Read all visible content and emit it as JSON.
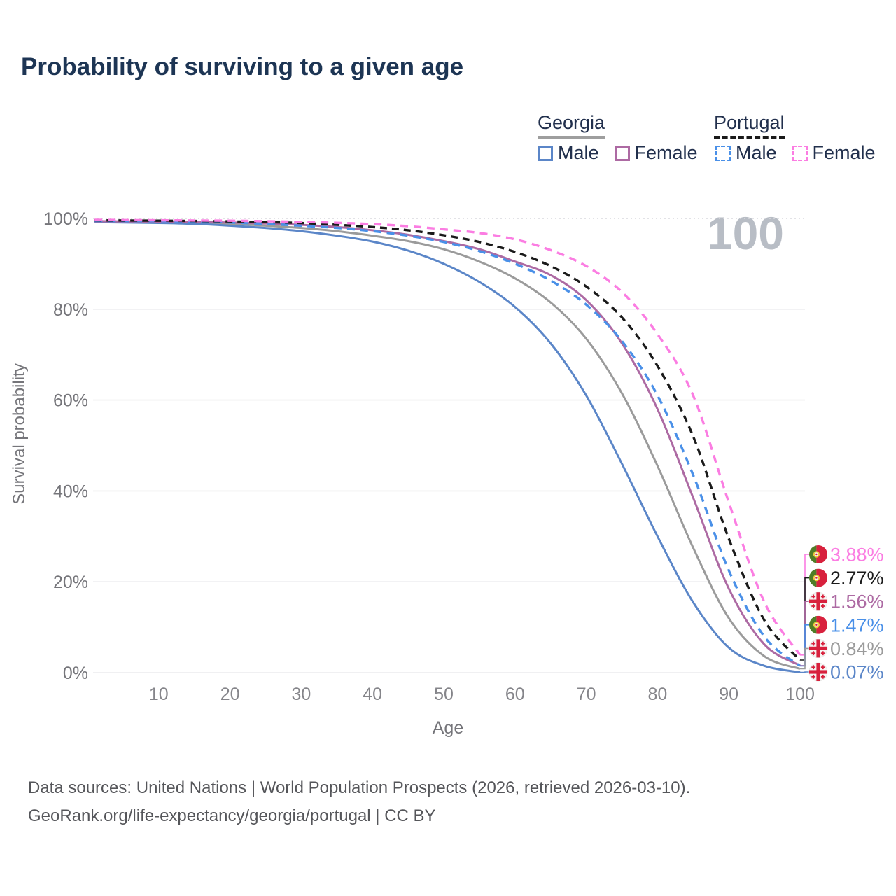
{
  "title": "Probability of surviving to a given age",
  "watermark_age": "100",
  "legend": {
    "groups": [
      {
        "name": "Georgia",
        "line_style": "solid",
        "items": [
          {
            "label": "Male",
            "color": "#5b86c8",
            "dashed": false
          },
          {
            "label": "Female",
            "color": "#ad6aa3",
            "dashed": false
          }
        ]
      },
      {
        "name": "Portugal",
        "line_style": "dashed",
        "items": [
          {
            "label": "Male",
            "color": "#4a90e8",
            "dashed": true
          },
          {
            "label": "Female",
            "color": "#fb7de2",
            "dashed": true
          }
        ]
      }
    ]
  },
  "chart_data": {
    "type": "line",
    "title": "Probability of surviving to a given age",
    "xlabel": "Age",
    "ylabel": "Survival probability",
    "xlim": [
      0,
      100
    ],
    "ylim": [
      0,
      100
    ],
    "grid": true,
    "legend_position": "top-right",
    "xticks": [
      10,
      20,
      30,
      40,
      50,
      60,
      70,
      80,
      90,
      100
    ],
    "yticks": [
      0,
      20,
      40,
      60,
      80,
      100
    ],
    "ytick_suffix": "%",
    "x": [
      1,
      5,
      10,
      15,
      20,
      25,
      30,
      35,
      40,
      45,
      50,
      55,
      60,
      65,
      70,
      75,
      80,
      85,
      90,
      95,
      100
    ],
    "series": [
      {
        "name": "Georgia",
        "sex": "Both",
        "color": "#9b9b9b",
        "dashed": false,
        "values": [
          99.3,
          99.25,
          99.2,
          99.0,
          98.8,
          98.4,
          97.9,
          97.2,
          96.2,
          95.0,
          93.2,
          90.5,
          86.8,
          81.5,
          73.5,
          61.5,
          45.5,
          27.5,
          12.0,
          3.6,
          0.84
        ]
      },
      {
        "name": "Georgia Male",
        "sex": "Male",
        "color": "#5b86c8",
        "dashed": false,
        "values": [
          99.2,
          99.1,
          99.0,
          98.8,
          98.4,
          97.9,
          97.2,
          96.2,
          94.9,
          92.9,
          90.0,
          86.0,
          80.5,
          72.5,
          61.0,
          46.0,
          30.0,
          15.5,
          5.5,
          1.5,
          0.07
        ]
      },
      {
        "name": "Georgia Female",
        "sex": "Female",
        "color": "#ad6aa3",
        "dashed": false,
        "values": [
          99.4,
          99.35,
          99.3,
          99.2,
          99.1,
          98.9,
          98.6,
          98.1,
          97.4,
          96.4,
          95.0,
          93.2,
          90.5,
          87.5,
          82.0,
          72.5,
          58.0,
          38.5,
          18.5,
          6.2,
          1.56
        ]
      },
      {
        "name": "Portugal Male",
        "sex": "Male",
        "color": "#4a90e8",
        "dashed": true,
        "values": [
          99.5,
          99.45,
          99.4,
          99.3,
          99.1,
          98.8,
          98.4,
          97.9,
          97.2,
          96.2,
          94.8,
          92.8,
          90.0,
          86.3,
          81.0,
          73.0,
          61.0,
          43.5,
          22.5,
          7.9,
          1.47
        ]
      },
      {
        "name": "Portugal",
        "sex": "Both",
        "color": "#1a1a1a",
        "dashed": true,
        "values": [
          99.6,
          99.55,
          99.5,
          99.45,
          99.35,
          99.2,
          99.0,
          98.6,
          98.1,
          97.4,
          96.3,
          94.8,
          92.6,
          89.5,
          85.0,
          78.2,
          67.5,
          52.0,
          29.5,
          11.5,
          2.77
        ]
      },
      {
        "name": "Portugal Female",
        "sex": "Female",
        "color": "#fb7de2",
        "dashed": true,
        "values": [
          99.7,
          99.65,
          99.6,
          99.55,
          99.5,
          99.4,
          99.25,
          99.05,
          98.75,
          98.3,
          97.6,
          96.8,
          95.4,
          93.0,
          89.5,
          83.8,
          74.5,
          61.0,
          37.5,
          15.5,
          3.88
        ]
      }
    ],
    "end_labels": [
      {
        "series": "Portugal Female",
        "flag": "portugal",
        "value": 3.88,
        "value_label": "3.88%",
        "color": "#fb7de2"
      },
      {
        "series": "Portugal",
        "flag": "portugal",
        "value": 2.77,
        "value_label": "2.77%",
        "color": "#1a1a1a"
      },
      {
        "series": "Georgia Female",
        "flag": "georgia",
        "value": 1.56,
        "value_label": "1.56%",
        "color": "#ad6aa3"
      },
      {
        "series": "Portugal Male",
        "flag": "portugal",
        "value": 1.47,
        "value_label": "1.47%",
        "color": "#4a90e8"
      },
      {
        "series": "Georgia",
        "flag": "georgia",
        "value": 0.84,
        "value_label": "0.84%",
        "color": "#9b9b9b"
      },
      {
        "series": "Georgia Male",
        "flag": "georgia",
        "value": 0.07,
        "value_label": "0.07%",
        "color": "#5b86c8"
      }
    ]
  },
  "footer": {
    "line1": "Data sources: United Nations | World Population Prospects (2026, retrieved 2026-03-10).",
    "line2": "GeoRank.org/life-expectancy/georgia/portugal | CC BY"
  }
}
